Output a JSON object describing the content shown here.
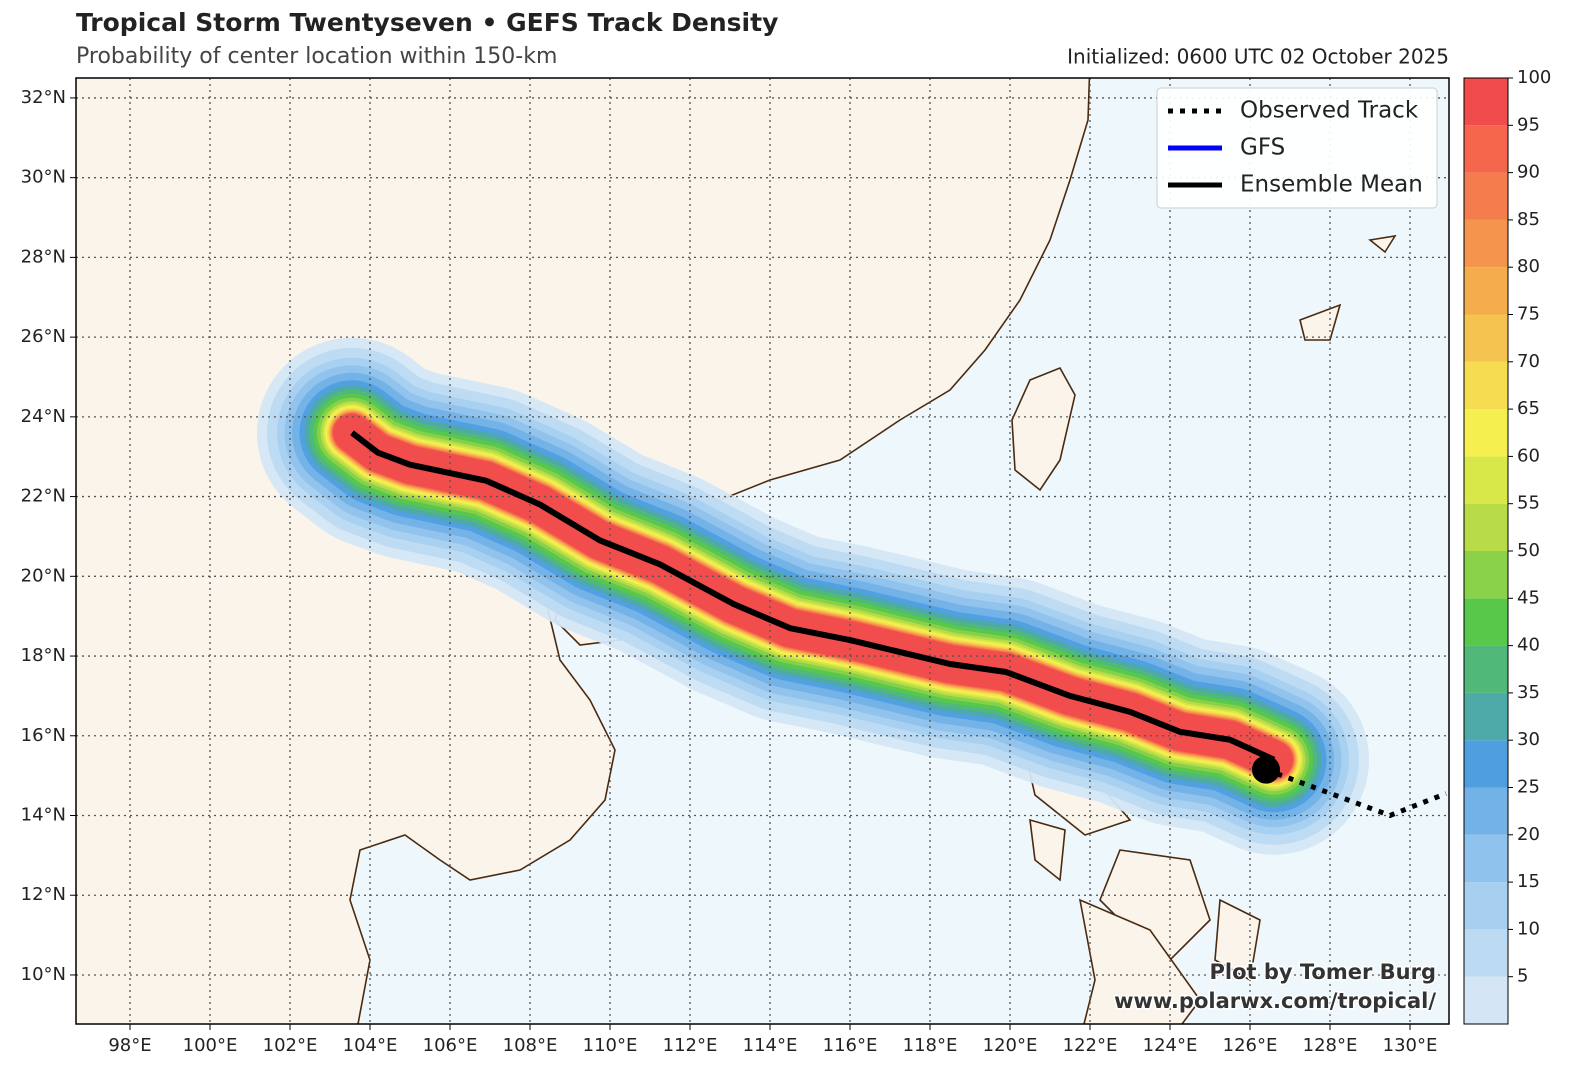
{
  "chart_data": {
    "type": "track-map",
    "title": "Tropical Storm Twentyseven • GEFS Track Density",
    "subtitle": "Probability of center location within 150-km",
    "initialized": "Initialized: 0600 UTC 02 October 2025",
    "credit": [
      "Plot by Tomer Burg",
      "www.polarwx.com/tropical/"
    ],
    "xlim": [
      96.65,
      130.975
    ],
    "ylim": [
      8.77,
      32.5
    ],
    "xticks": [
      {
        "value": 98,
        "label": "98°E"
      },
      {
        "value": 100,
        "label": "100°E"
      },
      {
        "value": 102,
        "label": "102°E"
      },
      {
        "value": 104,
        "label": "104°E"
      },
      {
        "value": 106,
        "label": "106°E"
      },
      {
        "value": 108,
        "label": "108°E"
      },
      {
        "value": 110,
        "label": "110°E"
      },
      {
        "value": 112,
        "label": "112°E"
      },
      {
        "value": 114,
        "label": "114°E"
      },
      {
        "value": 116,
        "label": "116°E"
      },
      {
        "value": 118,
        "label": "118°E"
      },
      {
        "value": 120,
        "label": "120°E"
      },
      {
        "value": 122,
        "label": "122°E"
      },
      {
        "value": 124,
        "label": "124°E"
      },
      {
        "value": 126,
        "label": "126°E"
      },
      {
        "value": 128,
        "label": "128°E"
      },
      {
        "value": 130,
        "label": "130°E"
      }
    ],
    "yticks": [
      {
        "value": 10,
        "label": "10°N"
      },
      {
        "value": 12,
        "label": "12°N"
      },
      {
        "value": 14,
        "label": "14°N"
      },
      {
        "value": 16,
        "label": "16°N"
      },
      {
        "value": 18,
        "label": "18°N"
      },
      {
        "value": 20,
        "label": "20°N"
      },
      {
        "value": 22,
        "label": "22°N"
      },
      {
        "value": 24,
        "label": "24°N"
      },
      {
        "value": 26,
        "label": "26°N"
      },
      {
        "value": 28,
        "label": "28°N"
      },
      {
        "value": 30,
        "label": "30°N"
      },
      {
        "value": 32,
        "label": "32°N"
      }
    ],
    "grid": true,
    "legend": "upper right",
    "series": [
      {
        "name": "Observed Track",
        "color": "#000000",
        "style": "dotted",
        "x": [
          126.4,
          127.75,
          129.5,
          130.0,
          130.9
        ],
        "values": [
          15.15,
          14.65,
          14.0,
          14.2,
          14.55
        ]
      },
      {
        "name": "GFS",
        "color": "#0000ff",
        "style": "solid",
        "x": [],
        "values": []
      },
      {
        "name": "Ensemble Mean",
        "color": "#000000",
        "style": "solid",
        "x": [
          103.55,
          104.2,
          105.0,
          106.9,
          108.25,
          109.75,
          111.25,
          113.1,
          114.5,
          116.0,
          117.25,
          118.5,
          119.9,
          121.5,
          123.0,
          124.25,
          125.5,
          126.6
        ],
        "values": [
          23.6,
          23.1,
          22.8,
          22.4,
          21.8,
          20.9,
          20.3,
          19.3,
          18.7,
          18.4,
          18.1,
          17.8,
          17.6,
          17.0,
          16.6,
          16.1,
          15.9,
          15.4
        ]
      }
    ],
    "colorbar": {
      "clim": [
        0,
        100
      ],
      "ticks": [
        5,
        10,
        15,
        20,
        25,
        30,
        35,
        40,
        45,
        50,
        55,
        60,
        65,
        70,
        75,
        80,
        85,
        90,
        95,
        100
      ],
      "colors": [
        "#d4e6f6",
        "#bcdbf3",
        "#a6cff0",
        "#8fc2ec",
        "#73b2e7",
        "#4f9fe0",
        "#4eaaa8",
        "#50b878",
        "#58c84a",
        "#8ad24a",
        "#b8dc48",
        "#d8e848",
        "#f5f050",
        "#f5dc50",
        "#f5c450",
        "#f5ac4c",
        "#f5944c",
        "#f57c4c",
        "#f5664c",
        "#f04c4c"
      ]
    }
  }
}
